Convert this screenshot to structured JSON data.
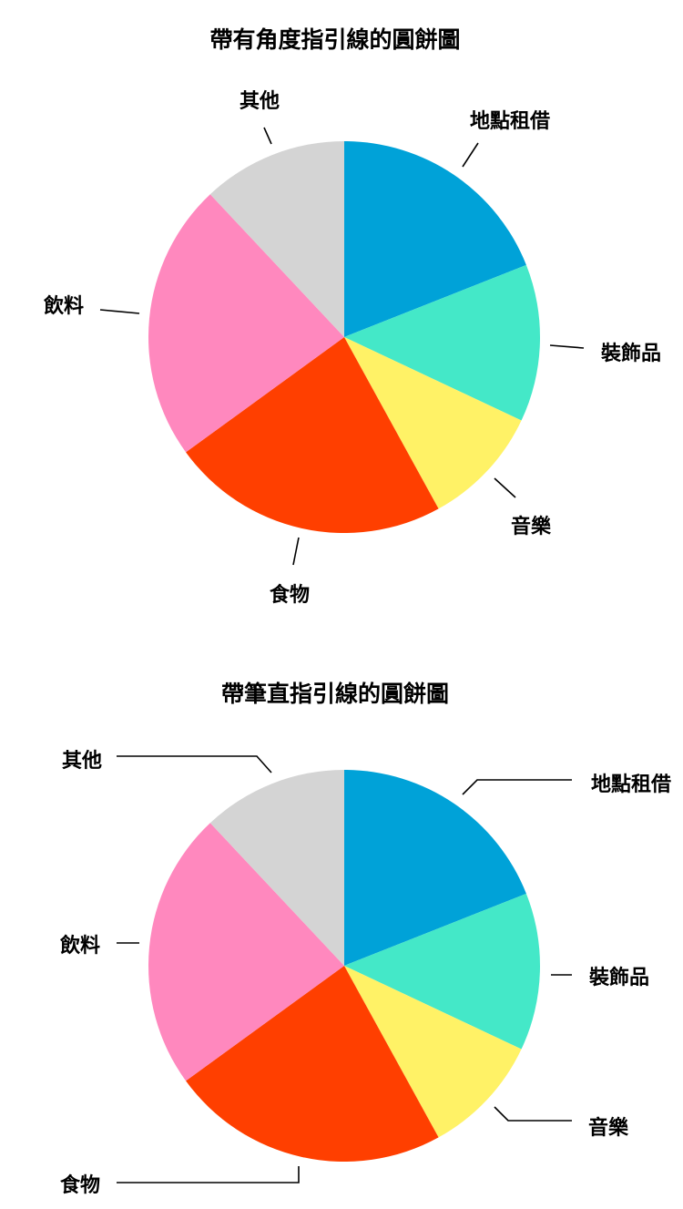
{
  "chart_data": [
    {
      "type": "pie",
      "title": "帶有角度指引線的圓餅圖",
      "leader_lines": "angled",
      "categories": [
        "地點租借",
        "裝飾品",
        "音樂",
        "食物",
        "飲料",
        "其他"
      ],
      "values": [
        19,
        13,
        10,
        23,
        23,
        12
      ],
      "colors": [
        "#00A2D8",
        "#44E8C8",
        "#FFF266",
        "#FF3F00",
        "#FF88BE",
        "#D4D4D4"
      ]
    },
    {
      "type": "pie",
      "title": "帶筆直指引線的圓餅圖",
      "leader_lines": "straight",
      "categories": [
        "地點租借",
        "裝飾品",
        "音樂",
        "食物",
        "飲料",
        "其他"
      ],
      "values": [
        19,
        13,
        10,
        23,
        23,
        12
      ],
      "colors": [
        "#00A2D8",
        "#44E8C8",
        "#FFF266",
        "#FF3F00",
        "#FF88BE",
        "#D4D4D4"
      ]
    }
  ]
}
